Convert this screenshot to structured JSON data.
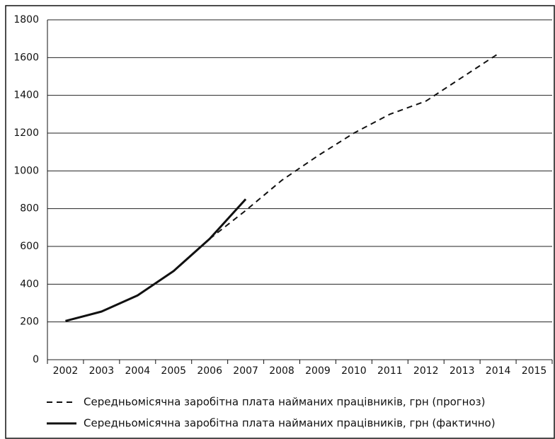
{
  "chart_data": {
    "type": "line",
    "categories": [
      "2002",
      "2003",
      "2004",
      "2005",
      "2006",
      "2007",
      "2008",
      "2009",
      "2010",
      "2011",
      "2012",
      "2013",
      "2014",
      "2015"
    ],
    "series": [
      {
        "name": "Середньомісячна заробітна плата найманих працівників, грн (прогноз)",
        "color": "#111111",
        "dash": true,
        "values": [
          205,
          255,
          340,
          470,
          640,
          790,
          950,
          1080,
          1200,
          1300,
          1370,
          1495,
          1620,
          null
        ]
      },
      {
        "name": "Середньомісячна заробітна плата найманих працівників, грн (фактично)",
        "color": "#111111",
        "dash": false,
        "values": [
          205,
          255,
          340,
          470,
          640,
          850,
          null,
          null,
          null,
          null,
          null,
          null,
          null,
          null
        ]
      }
    ],
    "ylim": [
      0,
      1800
    ],
    "yticks": [
      0,
      200,
      400,
      600,
      800,
      1000,
      1200,
      1400,
      1600,
      1800
    ],
    "grid": true
  }
}
